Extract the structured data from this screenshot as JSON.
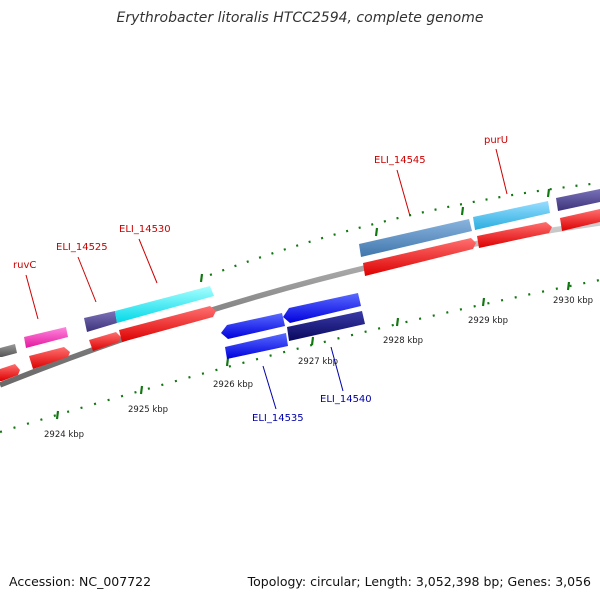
{
  "title": "Erythrobacter litoralis HTCC2594, complete genome",
  "footer": {
    "accession": "Accession: NC_007722",
    "summary": "Topology: circular; Length: 3,052,398 bp; Genes: 3,056"
  },
  "scale_labels": [
    "2924 kbp",
    "2925 kbp",
    "2926 kbp",
    "2927 kbp",
    "2928 kbp",
    "2929 kbp",
    "2930 kbp"
  ],
  "gene_labels": {
    "ruvC": "ruvC",
    "eli14525": "ELI_14525",
    "eli14530": "ELI_14530",
    "eli14545": "ELI_14545",
    "purU": "purU",
    "eli14535": "ELI_14535",
    "eli14540": "ELI_14540"
  },
  "colors": {
    "forward_label": "#cc0000",
    "reverse_label": "#0000aa",
    "tick": "#007700",
    "backbone": "#888888",
    "cds": "#ff0000",
    "forward_gene": "#00eeee",
    "reverse_gene": "#0000ff"
  }
}
